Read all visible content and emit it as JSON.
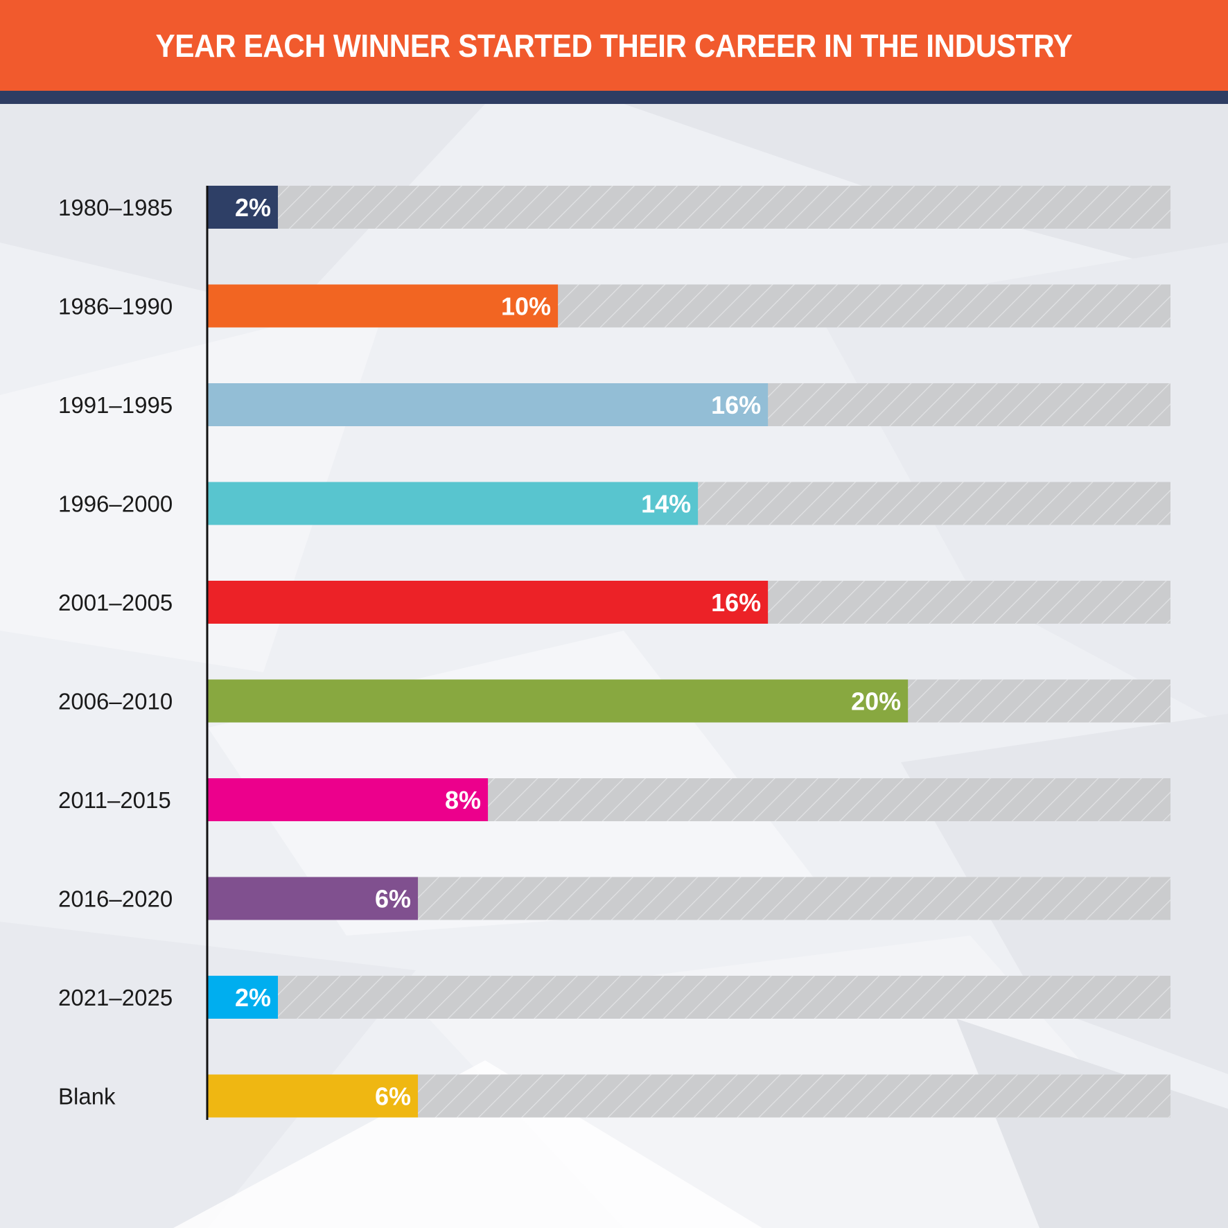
{
  "title": "YEAR EACH WINNER STARTED THEIR CAREER IN THE INDUSTRY",
  "colors": {
    "title_bg": "#f15a2d",
    "title_rule": "#2e3d63",
    "track": "#cbccce",
    "track_hatch": "#e2e3e5",
    "axis": "#111111"
  },
  "chart_data": {
    "type": "bar",
    "orientation": "horizontal",
    "title": "YEAR EACH WINNER STARTED THEIR CAREER IN THE INDUSTRY",
    "xlabel": "",
    "ylabel": "",
    "xlim": [
      0,
      27.5
    ],
    "grid": false,
    "categories": [
      "1980–1985",
      "1986–1990",
      "1991–1995",
      "1996–2000",
      "2001–2005",
      "2006–2010",
      "2011–2015",
      "2016–2020",
      "2021–2025",
      "Blank"
    ],
    "values": [
      2,
      10,
      16,
      14,
      16,
      20,
      8,
      6,
      2,
      6
    ],
    "value_labels": [
      "2%",
      "10%",
      "16%",
      "14%",
      "16%",
      "20%",
      "8%",
      "6%",
      "2%",
      "6%"
    ],
    "bar_colors": [
      "#2e3f66",
      "#f26522",
      "#93bed6",
      "#58c5cf",
      "#ec2227",
      "#88a840",
      "#ec008c",
      "#80508f",
      "#00aeef",
      "#efb712"
    ]
  }
}
